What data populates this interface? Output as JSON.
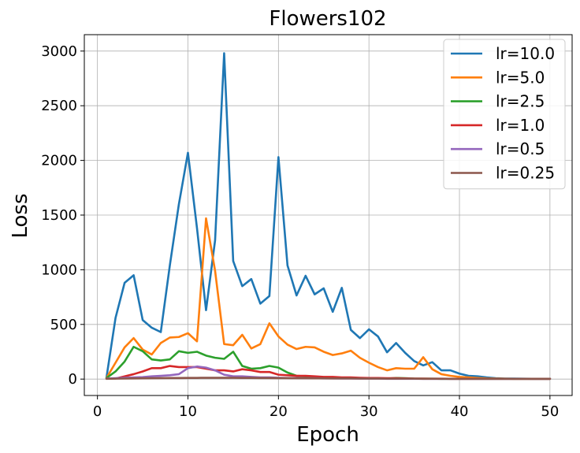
{
  "chart_data": {
    "type": "line",
    "title": "Flowers102",
    "xlabel": "Epoch",
    "ylabel": "Loss",
    "xlim": [
      -1.45,
      52.45
    ],
    "ylim": [
      -150,
      3150
    ],
    "xticks": [
      0,
      10,
      20,
      30,
      40,
      50
    ],
    "yticks": [
      0,
      500,
      1000,
      1500,
      2000,
      2500,
      3000
    ],
    "grid": true,
    "legend_position": "top-right",
    "series": [
      {
        "name": "lr=10.0",
        "color": "#1f77b4",
        "x": [
          1,
          2,
          3,
          4,
          5,
          6,
          7,
          8,
          9,
          10,
          11,
          12,
          13,
          14,
          15,
          16,
          17,
          18,
          19,
          20,
          21,
          22,
          23,
          24,
          25,
          26,
          27,
          28,
          29,
          30,
          31,
          32,
          33,
          34,
          35,
          36,
          37,
          38,
          39,
          40,
          41,
          42,
          43,
          44,
          45,
          46,
          47,
          48,
          49,
          50
        ],
        "y": [
          15,
          560,
          880,
          950,
          540,
          470,
          430,
          1040,
          1600,
          2070,
          1380,
          630,
          1270,
          2980,
          1080,
          850,
          915,
          690,
          760,
          2030,
          1040,
          765,
          945,
          775,
          830,
          615,
          835,
          450,
          375,
          455,
          390,
          245,
          330,
          240,
          165,
          125,
          155,
          80,
          80,
          50,
          30,
          25,
          15,
          8,
          5,
          5,
          4,
          3,
          3,
          3
        ]
      },
      {
        "name": "lr=5.0",
        "color": "#ff7f0e",
        "x": [
          1,
          2,
          3,
          4,
          5,
          6,
          7,
          8,
          9,
          10,
          11,
          12,
          13,
          14,
          15,
          16,
          17,
          18,
          19,
          20,
          21,
          22,
          23,
          24,
          25,
          26,
          27,
          28,
          29,
          30,
          31,
          32,
          33,
          34,
          35,
          36,
          37,
          38,
          39,
          40,
          41,
          42,
          43,
          44,
          45,
          46,
          47,
          48,
          49,
          50
        ],
        "y": [
          10,
          150,
          290,
          375,
          270,
          225,
          330,
          380,
          385,
          420,
          345,
          1470,
          990,
          320,
          310,
          405,
          280,
          320,
          510,
          390,
          315,
          275,
          295,
          290,
          250,
          220,
          235,
          260,
          195,
          150,
          110,
          80,
          100,
          95,
          95,
          200,
          90,
          45,
          30,
          20,
          15,
          10,
          6,
          5,
          4,
          3,
          3,
          3,
          3,
          3
        ]
      },
      {
        "name": "lr=2.5",
        "color": "#2ca02c",
        "x": [
          1,
          2,
          3,
          4,
          5,
          6,
          7,
          8,
          9,
          10,
          11,
          12,
          13,
          14,
          15,
          16,
          17,
          18,
          19,
          20,
          21,
          22,
          23,
          24,
          25,
          26,
          27,
          28,
          29,
          30,
          31,
          32,
          33,
          34,
          35,
          36,
          37,
          38,
          39,
          40,
          41,
          42,
          43,
          44,
          45,
          46,
          47,
          48,
          49,
          50
        ],
        "y": [
          10,
          70,
          160,
          295,
          255,
          180,
          170,
          180,
          255,
          240,
          250,
          215,
          195,
          185,
          250,
          120,
          95,
          100,
          120,
          105,
          60,
          30,
          25,
          20,
          15,
          15,
          10,
          8,
          8,
          6,
          6,
          5,
          10,
          8,
          5,
          4,
          4,
          3,
          3,
          3,
          3,
          3,
          3,
          3,
          3,
          3,
          3,
          3,
          3,
          3
        ]
      },
      {
        "name": "lr=1.0",
        "color": "#d62728",
        "x": [
          1,
          2,
          3,
          4,
          5,
          6,
          7,
          8,
          9,
          10,
          11,
          12,
          13,
          14,
          15,
          16,
          17,
          18,
          19,
          20,
          21,
          22,
          23,
          24,
          25,
          26,
          27,
          28,
          29,
          30,
          31,
          32,
          33,
          34,
          35,
          36,
          37,
          38,
          39,
          40,
          41,
          42,
          43,
          44,
          45,
          46,
          47,
          48,
          49,
          50
        ],
        "y": [
          5,
          5,
          25,
          45,
          70,
          100,
          100,
          120,
          110,
          110,
          110,
          95,
          80,
          80,
          70,
          90,
          80,
          65,
          65,
          40,
          35,
          30,
          30,
          25,
          20,
          20,
          15,
          15,
          12,
          10,
          10,
          8,
          8,
          6,
          5,
          5,
          4,
          4,
          3,
          3,
          3,
          3,
          3,
          3,
          3,
          3,
          3,
          3,
          3,
          3
        ]
      },
      {
        "name": "lr=0.5",
        "color": "#9467bd",
        "x": [
          1,
          2,
          3,
          4,
          5,
          6,
          7,
          8,
          9,
          10,
          11,
          12,
          13,
          14,
          15,
          16,
          17,
          18,
          19,
          20,
          21,
          22,
          23,
          24,
          25,
          26,
          27,
          28,
          29,
          30,
          31,
          32,
          33,
          34,
          35,
          36,
          37,
          38,
          39,
          40,
          41,
          42,
          43,
          44,
          45,
          46,
          47,
          48,
          49,
          50
        ],
        "y": [
          5,
          8,
          12,
          15,
          18,
          25,
          30,
          35,
          45,
          100,
          115,
          105,
          80,
          40,
          25,
          25,
          20,
          15,
          15,
          12,
          10,
          10,
          8,
          8,
          6,
          6,
          5,
          5,
          4,
          4,
          4,
          3,
          3,
          3,
          3,
          3,
          3,
          3,
          3,
          3,
          3,
          3,
          3,
          3,
          3,
          3,
          3,
          3,
          3,
          3
        ]
      },
      {
        "name": "lr=0.25",
        "color": "#8c564b",
        "x": [
          1,
          2,
          3,
          4,
          5,
          6,
          7,
          8,
          9,
          10,
          11,
          12,
          13,
          14,
          15,
          16,
          17,
          18,
          19,
          20,
          21,
          22,
          23,
          24,
          25,
          26,
          27,
          28,
          29,
          30,
          31,
          32,
          33,
          34,
          35,
          36,
          37,
          38,
          39,
          40,
          41,
          42,
          43,
          44,
          45,
          46,
          47,
          48,
          49,
          50
        ],
        "y": [
          3,
          4,
          5,
          6,
          7,
          8,
          9,
          10,
          10,
          11,
          11,
          12,
          12,
          12,
          12,
          11,
          11,
          10,
          10,
          9,
          9,
          8,
          8,
          7,
          7,
          6,
          6,
          6,
          5,
          5,
          5,
          4,
          4,
          4,
          4,
          3,
          3,
          3,
          3,
          3,
          3,
          3,
          3,
          3,
          3,
          3,
          3,
          3,
          3,
          3
        ]
      }
    ]
  }
}
